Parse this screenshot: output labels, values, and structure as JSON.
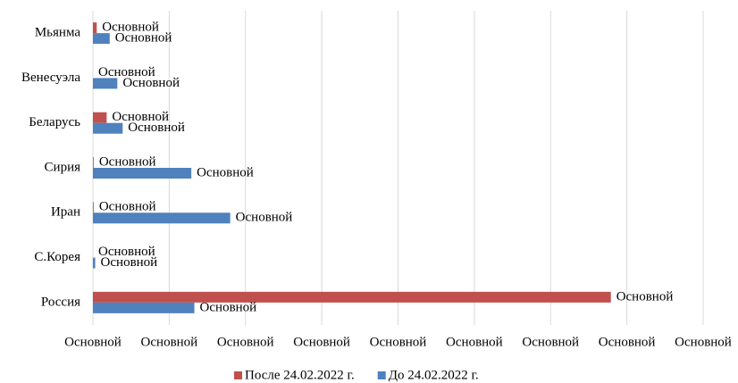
{
  "chart_data": {
    "type": "barh",
    "categories": [
      "Мьянма",
      "Венесуэла",
      "Беларусь",
      "Сирия",
      "Иран",
      "С.Корея",
      "Россия"
    ],
    "series": [
      {
        "name": "После 24.02.2022 г.",
        "color": "#c0504d",
        "values": [
          0.05,
          0,
          0.18,
          0.01,
          0.01,
          0,
          6.79
        ],
        "value_labels": [
          "Основной",
          "Основной",
          "Основной",
          "Основной",
          "Основной",
          "Основной",
          "Основной"
        ]
      },
      {
        "name": "До 24.02.2022 г.",
        "color": "#4f81bd",
        "values": [
          0.22,
          0.32,
          0.39,
          1.29,
          1.8,
          0.03,
          1.33
        ],
        "value_labels": [
          "Основной",
          "Основной",
          "Основной",
          "Основной",
          "Основной",
          "Основной",
          "Основной"
        ]
      }
    ],
    "xlim": [
      0,
      8
    ],
    "xticks": [
      {
        "value": 0,
        "label": "Основной"
      },
      {
        "value": 1,
        "label": "Основной"
      },
      {
        "value": 2,
        "label": "Основной"
      },
      {
        "value": 3,
        "label": "Основной"
      },
      {
        "value": 4,
        "label": "Основной"
      },
      {
        "value": 5,
        "label": "Основной"
      },
      {
        "value": 6,
        "label": "Основной"
      },
      {
        "value": 7,
        "label": "Основной"
      },
      {
        "value": 8,
        "label": "Основной"
      }
    ],
    "grid": true,
    "legend": "bottom"
  }
}
